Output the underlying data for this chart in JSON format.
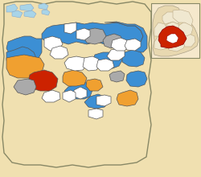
{
  "background_color": "#f0e0b0",
  "colors": {
    "blue": "#3c8fd4",
    "orange": "#f0a030",
    "red": "#cc2200",
    "gray": "#aaaaaa",
    "white": "#ffffff",
    "light_blue": "#a8d4e8",
    "tan": "#f0e0b0",
    "inset_bg": "#f5e8cc",
    "border": "#888866"
  },
  "figsize": [
    2.5,
    2.2
  ],
  "dpi": 100
}
